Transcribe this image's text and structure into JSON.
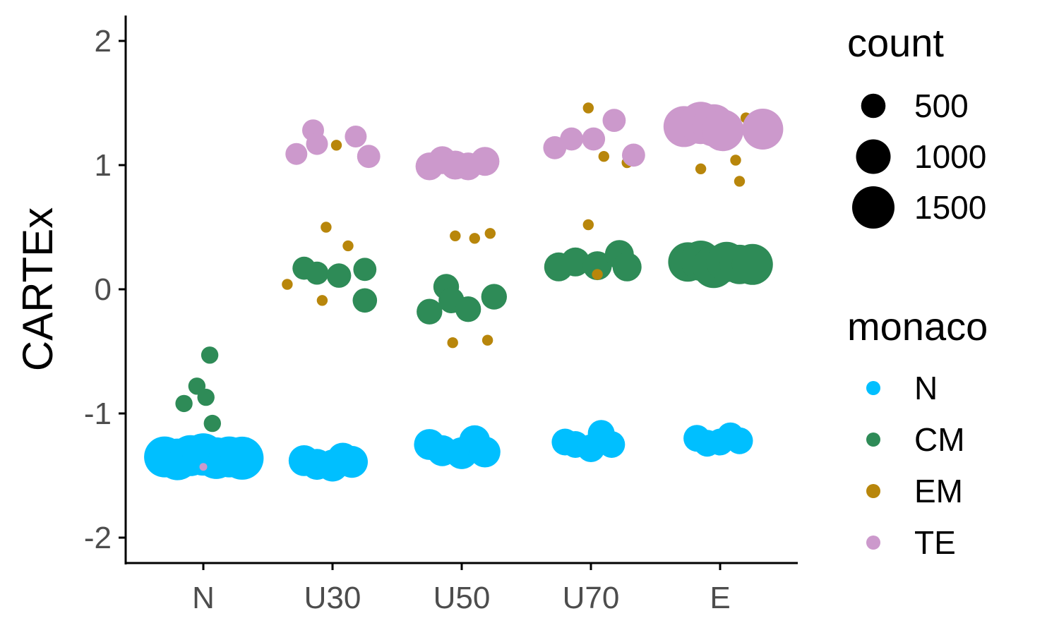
{
  "chart_data": {
    "type": "scatter",
    "title": "",
    "xlabel": "",
    "ylabel": "CARTEx",
    "categories": [
      "N",
      "U30",
      "U50",
      "U70",
      "E"
    ],
    "ylim": [
      -2.2,
      2.2
    ],
    "yticks": [
      -2,
      -1,
      0,
      1,
      2
    ],
    "ytick_labels": [
      "-2",
      "-1",
      "0",
      "1",
      "2"
    ],
    "grid": false,
    "legend": {
      "placement": "right",
      "size_title": "count",
      "size_entries": [
        {
          "label": "500",
          "value": 500
        },
        {
          "label": "1000",
          "value": 1000
        },
        {
          "label": "1500",
          "value": 1500
        }
      ],
      "color_title": "monaco"
    },
    "series": [
      {
        "name": "N",
        "color": "#00bfff",
        "points": [
          {
            "x": -0.3,
            "y": -1.35,
            "count": 1400
          },
          {
            "x": -0.2,
            "y": -1.37,
            "count": 1450
          },
          {
            "x": -0.1,
            "y": -1.34,
            "count": 1400
          },
          {
            "x": 0.0,
            "y": -1.33,
            "count": 1500
          },
          {
            "x": 0.1,
            "y": -1.36,
            "count": 1450
          },
          {
            "x": 0.2,
            "y": -1.35,
            "count": 1400
          },
          {
            "x": 0.3,
            "y": -1.36,
            "count": 1550
          },
          {
            "x": 0.78,
            "y": -1.38,
            "count": 800
          },
          {
            "x": 0.88,
            "y": -1.41,
            "count": 800
          },
          {
            "x": 1.0,
            "y": -1.42,
            "count": 850
          },
          {
            "x": 1.08,
            "y": -1.36,
            "count": 800
          },
          {
            "x": 1.15,
            "y": -1.39,
            "count": 850
          },
          {
            "x": 1.75,
            "y": -1.25,
            "count": 800
          },
          {
            "x": 1.85,
            "y": -1.3,
            "count": 800
          },
          {
            "x": 2.0,
            "y": -1.32,
            "count": 850
          },
          {
            "x": 2.1,
            "y": -1.22,
            "count": 800
          },
          {
            "x": 2.18,
            "y": -1.31,
            "count": 800
          },
          {
            "x": 2.8,
            "y": -1.23,
            "count": 600
          },
          {
            "x": 2.88,
            "y": -1.25,
            "count": 600
          },
          {
            "x": 3.0,
            "y": -1.28,
            "count": 650
          },
          {
            "x": 3.08,
            "y": -1.16,
            "count": 600
          },
          {
            "x": 3.16,
            "y": -1.25,
            "count": 600
          },
          {
            "x": 3.82,
            "y": -1.2,
            "count": 600
          },
          {
            "x": 3.9,
            "y": -1.24,
            "count": 600
          },
          {
            "x": 4.0,
            "y": -1.23,
            "count": 600
          },
          {
            "x": 4.08,
            "y": -1.18,
            "count": 600
          },
          {
            "x": 4.15,
            "y": -1.22,
            "count": 600
          }
        ]
      },
      {
        "name": "CM",
        "color": "#2e8b57",
        "points": [
          {
            "x": -0.15,
            "y": -0.92,
            "count": 250
          },
          {
            "x": -0.05,
            "y": -0.78,
            "count": 250
          },
          {
            "x": 0.02,
            "y": -0.87,
            "count": 250
          },
          {
            "x": 0.05,
            "y": -0.53,
            "count": 250
          },
          {
            "x": 0.07,
            "y": -1.08,
            "count": 250
          },
          {
            "x": 0.78,
            "y": 0.17,
            "count": 450
          },
          {
            "x": 0.88,
            "y": 0.13,
            "count": 450
          },
          {
            "x": 1.05,
            "y": 0.11,
            "count": 500
          },
          {
            "x": 1.25,
            "y": 0.16,
            "count": 450
          },
          {
            "x": 1.25,
            "y": -0.09,
            "count": 500
          },
          {
            "x": 1.75,
            "y": -0.18,
            "count": 550
          },
          {
            "x": 1.88,
            "y": 0.02,
            "count": 550
          },
          {
            "x": 1.92,
            "y": -0.09,
            "count": 550
          },
          {
            "x": 2.05,
            "y": -0.16,
            "count": 550
          },
          {
            "x": 2.25,
            "y": -0.06,
            "count": 550
          },
          {
            "x": 2.75,
            "y": 0.18,
            "count": 700
          },
          {
            "x": 2.88,
            "y": 0.22,
            "count": 700
          },
          {
            "x": 3.05,
            "y": 0.19,
            "count": 700
          },
          {
            "x": 3.22,
            "y": 0.28,
            "count": 700
          },
          {
            "x": 3.28,
            "y": 0.18,
            "count": 700
          },
          {
            "x": 3.75,
            "y": 0.22,
            "count": 1300
          },
          {
            "x": 3.85,
            "y": 0.23,
            "count": 1350
          },
          {
            "x": 3.95,
            "y": 0.18,
            "count": 1500
          },
          {
            "x": 4.05,
            "y": 0.22,
            "count": 1350
          },
          {
            "x": 4.15,
            "y": 0.2,
            "count": 1300
          },
          {
            "x": 4.25,
            "y": 0.2,
            "count": 1400
          }
        ]
      },
      {
        "name": "EM",
        "color": "#b8860b",
        "points": [
          {
            "x": 0.65,
            "y": 0.04,
            "count": 100
          },
          {
            "x": 0.95,
            "y": 0.5,
            "count": 100
          },
          {
            "x": 1.03,
            "y": 1.16,
            "count": 100
          },
          {
            "x": 1.12,
            "y": 0.35,
            "count": 100
          },
          {
            "x": 0.92,
            "y": -0.09,
            "count": 100
          },
          {
            "x": 1.95,
            "y": 0.43,
            "count": 100
          },
          {
            "x": 2.1,
            "y": 0.41,
            "count": 100
          },
          {
            "x": 2.22,
            "y": 0.45,
            "count": 100
          },
          {
            "x": 1.93,
            "y": -0.43,
            "count": 100
          },
          {
            "x": 2.2,
            "y": -0.41,
            "count": 100
          },
          {
            "x": 2.98,
            "y": 1.46,
            "count": 100
          },
          {
            "x": 3.1,
            "y": 1.07,
            "count": 100
          },
          {
            "x": 3.28,
            "y": 1.02,
            "count": 100
          },
          {
            "x": 2.98,
            "y": 0.52,
            "count": 100
          },
          {
            "x": 3.05,
            "y": 0.12,
            "count": 100
          },
          {
            "x": 3.85,
            "y": 0.97,
            "count": 100
          },
          {
            "x": 4.12,
            "y": 1.04,
            "count": 100
          },
          {
            "x": 4.15,
            "y": 0.87,
            "count": 100
          },
          {
            "x": 4.2,
            "y": 1.38,
            "count": 100
          }
        ]
      },
      {
        "name": "TE",
        "color": "#cc99cc",
        "points": [
          {
            "x": 0.0,
            "y": -1.43,
            "count": 50
          },
          {
            "x": 0.72,
            "y": 1.09,
            "count": 400
          },
          {
            "x": 0.85,
            "y": 1.28,
            "count": 400
          },
          {
            "x": 0.88,
            "y": 1.17,
            "count": 400
          },
          {
            "x": 1.18,
            "y": 1.23,
            "count": 400
          },
          {
            "x": 1.28,
            "y": 1.07,
            "count": 450
          },
          {
            "x": 1.75,
            "y": 0.99,
            "count": 650
          },
          {
            "x": 1.85,
            "y": 1.04,
            "count": 650
          },
          {
            "x": 1.95,
            "y": 1.0,
            "count": 700
          },
          {
            "x": 2.05,
            "y": 0.99,
            "count": 650
          },
          {
            "x": 2.18,
            "y": 1.03,
            "count": 700
          },
          {
            "x": 2.72,
            "y": 1.14,
            "count": 450
          },
          {
            "x": 2.85,
            "y": 1.21,
            "count": 450
          },
          {
            "x": 3.02,
            "y": 1.21,
            "count": 450
          },
          {
            "x": 3.18,
            "y": 1.36,
            "count": 450
          },
          {
            "x": 3.33,
            "y": 1.08,
            "count": 450
          },
          {
            "x": 3.72,
            "y": 1.31,
            "count": 1400
          },
          {
            "x": 3.85,
            "y": 1.34,
            "count": 1500
          },
          {
            "x": 3.95,
            "y": 1.32,
            "count": 1500
          },
          {
            "x": 4.02,
            "y": 1.28,
            "count": 1450
          },
          {
            "x": 4.33,
            "y": 1.29,
            "count": 1400
          }
        ]
      }
    ]
  }
}
